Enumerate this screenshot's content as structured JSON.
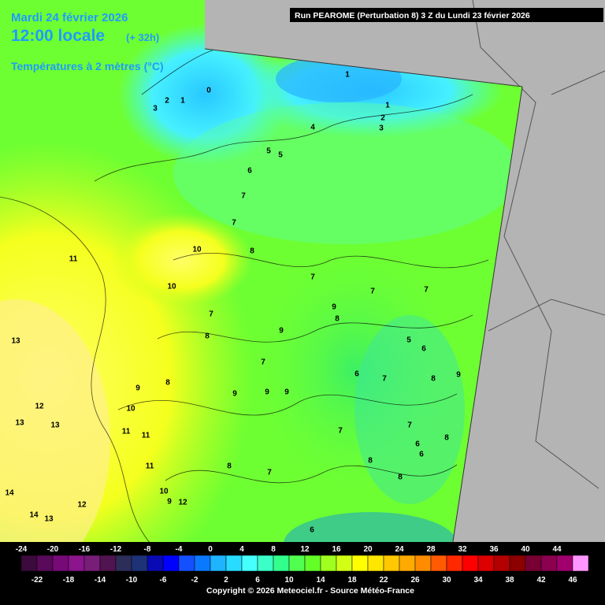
{
  "header": {
    "date": "Mardi 24 février 2026",
    "time": "12:00 locale",
    "lead": "(+ 32h)",
    "variable": "Températures à 2 mètres (°C)",
    "run": "Run PEAROME (Perturbation 8) 3 Z du Lundi 23 février 2026"
  },
  "contour_labels": [
    0,
    1,
    2,
    3,
    1,
    1,
    2,
    3,
    4,
    5,
    5,
    6,
    7,
    7,
    10,
    8,
    11,
    10,
    7,
    7,
    7,
    9,
    7,
    8,
    9,
    8,
    13,
    5,
    6,
    7,
    6,
    7,
    8,
    9,
    8,
    9,
    9,
    9,
    9,
    12,
    10,
    13,
    13,
    11,
    11,
    7,
    7,
    8,
    6,
    6,
    8,
    11,
    8,
    7,
    8,
    14,
    10,
    9,
    12,
    12,
    14,
    13,
    6
  ],
  "legend": {
    "top": [
      -24,
      -20,
      -16,
      -12,
      -8,
      -4,
      0,
      4,
      8,
      12,
      16,
      20,
      24,
      28,
      32,
      36,
      40,
      44
    ],
    "bottom": [
      -22,
      -18,
      -14,
      -10,
      -6,
      -2,
      2,
      6,
      10,
      14,
      18,
      22,
      26,
      30,
      34,
      38,
      42,
      46
    ],
    "colors": [
      "#3c0a3c",
      "#5a0a5a",
      "#780a78",
      "#8c148c",
      "#781e78",
      "#501450",
      "#2d2d5a",
      "#1e3278",
      "#0a0ab4",
      "#0000ff",
      "#1450ff",
      "#0a78ff",
      "#1eb4ff",
      "#28dcff",
      "#46ffff",
      "#3cffc8",
      "#32ff8c",
      "#50ff50",
      "#64ff28",
      "#a0ff1e",
      "#d2ff14",
      "#ffff00",
      "#ffe600",
      "#ffc800",
      "#ffaa00",
      "#ff8c00",
      "#ff5a00",
      "#ff2800",
      "#ff0000",
      "#dc0000",
      "#b40000",
      "#8c0000",
      "#780032",
      "#8c0050",
      "#a0006e",
      "#ff96ff"
    ]
  },
  "footer": {
    "copyright": "Copyright © 2026 Meteociel.fr - Source Météo-France"
  }
}
